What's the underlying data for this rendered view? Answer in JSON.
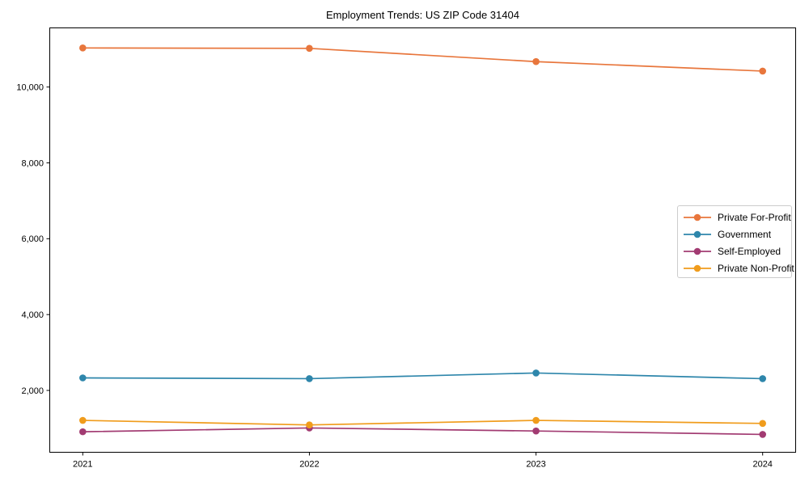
{
  "figure": {
    "background": "#ffffff",
    "text_color": "#000000",
    "spine_color": "#000000",
    "legend_border_color": "#cccccc"
  },
  "chart_data": {
    "type": "line",
    "title": "Employment Trends: US ZIP Code 31404",
    "categories": [
      "2021",
      "2022",
      "2023",
      "2024"
    ],
    "series": [
      {
        "name": "Private For-Profit",
        "color": "#E8763C",
        "values": [
          11030,
          11020,
          10670,
          10420
        ]
      },
      {
        "name": "Government",
        "color": "#2E86AB",
        "values": [
          2330,
          2310,
          2460,
          2310
        ]
      },
      {
        "name": "Self-Employed",
        "color": "#A23B72",
        "values": [
          910,
          1010,
          930,
          840
        ]
      },
      {
        "name": "Private Non-Profit",
        "color": "#F09C1C",
        "values": [
          1210,
          1090,
          1210,
          1130
        ]
      }
    ],
    "xlabel": "",
    "ylabel": "",
    "ylim": [
      380,
      11570
    ],
    "yticks": [
      2000,
      4000,
      6000,
      8000,
      10000
    ],
    "ytick_labels": [
      "2,000",
      "4,000",
      "6,000",
      "8,000",
      "10,000"
    ],
    "grid": false,
    "marker": "circle",
    "legend_position": "center-right"
  }
}
